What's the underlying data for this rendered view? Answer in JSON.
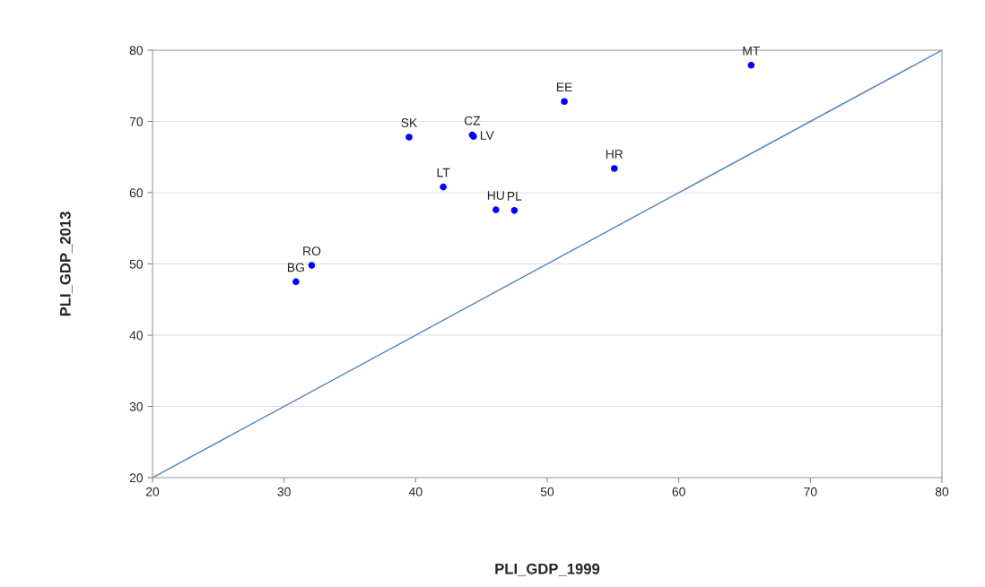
{
  "chart_data": {
    "type": "scatter",
    "xlabel": "PLI_GDP_1999",
    "ylabel": "PLI_GDP_2013",
    "xlim": [
      20,
      80
    ],
    "xticks": [
      20,
      30,
      40,
      50,
      60,
      70,
      80
    ],
    "ylim": [
      20,
      80
    ],
    "yticks": [
      20,
      30,
      40,
      50,
      60,
      70,
      80
    ],
    "grid": "y",
    "marker": "circle",
    "legend": false,
    "series": [
      {
        "color": "#0000ff",
        "x": [
          65.5,
          51.3,
          55.1,
          39.5,
          44.3,
          44.4,
          42.1,
          46.1,
          47.5,
          32.1,
          30.9
        ],
        "values": [
          77.9,
          72.8,
          63.4,
          67.8,
          68.1,
          67.9,
          60.8,
          57.6,
          57.5,
          49.8,
          47.5
        ]
      },
      {
        "type": "line",
        "marker": "none",
        "color": "#4f81bd",
        "x": [
          20,
          80
        ],
        "values": [
          20,
          80
        ]
      }
    ],
    "annotations": [
      {
        "text": "MT",
        "x": 65.5,
        "y": 77.9
      },
      {
        "text": "EE",
        "x": 51.3,
        "y": 72.8
      },
      {
        "text": "HR",
        "x": 55.1,
        "y": 63.4
      },
      {
        "text": "SK",
        "x": 39.5,
        "y": 67.8
      },
      {
        "text": "CZ",
        "x": 44.3,
        "y": 68.1
      },
      {
        "text": "LV",
        "x": 44.4,
        "y": 67.9
      },
      {
        "text": "LT",
        "x": 42.1,
        "y": 60.8
      },
      {
        "text": "HU",
        "x": 46.1,
        "y": 57.6
      },
      {
        "text": "PL",
        "x": 47.5,
        "y": 57.5
      },
      {
        "text": "RO",
        "x": 32.1,
        "y": 49.8
      },
      {
        "text": "BG",
        "x": 30.9,
        "y": 47.5
      }
    ]
  }
}
